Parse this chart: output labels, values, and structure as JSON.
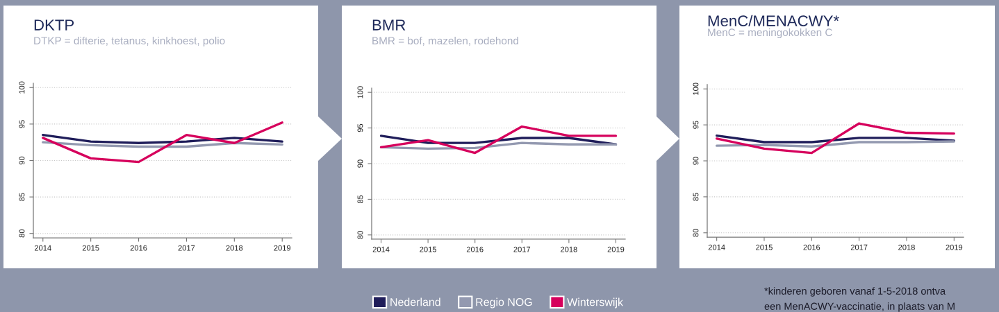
{
  "chart_data": [
    {
      "type": "line",
      "title": "DKTP",
      "subtitle": "DTKP = difterie, tetanus, kinkhoest, polio",
      "x": [
        2014,
        2015,
        2016,
        2017,
        2018,
        2019
      ],
      "xlim": [
        2013.8,
        2019.2
      ],
      "xticks": [
        2014,
        2015,
        2016,
        2017,
        2018,
        2019
      ],
      "ylim": [
        79.4,
        100.6
      ],
      "yticks": [
        80,
        85,
        90,
        95,
        100
      ],
      "grid": "y",
      "legend": "bottom",
      "series": [
        {
          "name": "Nederland",
          "color": "#1f1d5a",
          "values": [
            93.5,
            92.6,
            92.4,
            92.6,
            93.1,
            92.6
          ]
        },
        {
          "name": "Regio NOG",
          "color": "#9399b0",
          "values": [
            92.5,
            92.1,
            91.9,
            91.9,
            92.4,
            92.2
          ]
        },
        {
          "name": "Winterswijk",
          "color": "#d6005c",
          "values": [
            93.1,
            90.3,
            89.8,
            93.5,
            92.4,
            95.2
          ]
        }
      ]
    },
    {
      "type": "line",
      "title": "BMR",
      "subtitle": "BMR = bof, mazelen, rodehond",
      "x": [
        2014,
        2015,
        2016,
        2017,
        2018,
        2019
      ],
      "xlim": [
        2013.8,
        2019.2
      ],
      "xticks": [
        2014,
        2015,
        2016,
        2017,
        2018,
        2019
      ],
      "ylim": [
        79.4,
        100.6
      ],
      "yticks": [
        80,
        85,
        90,
        95,
        100
      ],
      "grid": "y",
      "series": [
        {
          "name": "Nederland",
          "color": "#1f1d5a",
          "values": [
            93.9,
            92.9,
            92.9,
            93.6,
            93.6,
            92.7
          ]
        },
        {
          "name": "Regio NOG",
          "color": "#9399b0",
          "values": [
            92.3,
            92.1,
            92.2,
            92.9,
            92.7,
            92.7
          ]
        },
        {
          "name": "Winterswijk",
          "color": "#d6005c",
          "values": [
            92.3,
            93.3,
            91.5,
            95.2,
            93.9,
            93.9
          ]
        }
      ]
    },
    {
      "type": "line",
      "title": "MenC/MENACWY*",
      "subtitle": "MenC = meningokokken C",
      "x": [
        2014,
        2015,
        2016,
        2017,
        2018,
        2019
      ],
      "xlim": [
        2013.8,
        2019.2
      ],
      "xticks": [
        2014,
        2015,
        2016,
        2017,
        2018,
        2019
      ],
      "ylim": [
        79.4,
        100.6
      ],
      "yticks": [
        80,
        85,
        90,
        95,
        100
      ],
      "grid": "y",
      "series": [
        {
          "name": "Nederland",
          "color": "#1f1d5a",
          "values": [
            93.5,
            92.6,
            92.6,
            93.2,
            93.2,
            92.8
          ]
        },
        {
          "name": "Regio NOG",
          "color": "#9399b0",
          "values": [
            92.1,
            92.2,
            92.0,
            92.6,
            92.6,
            92.7
          ]
        },
        {
          "name": "Winterswijk",
          "color": "#d6005c",
          "values": [
            93.1,
            91.7,
            91.1,
            95.2,
            93.9,
            93.8
          ]
        }
      ],
      "annotations": [
        "*kinderen geboren vanaf 1-5-2018 ontva",
        "een MenACWY-vaccinatie, in plaats van M"
      ]
    }
  ]
}
